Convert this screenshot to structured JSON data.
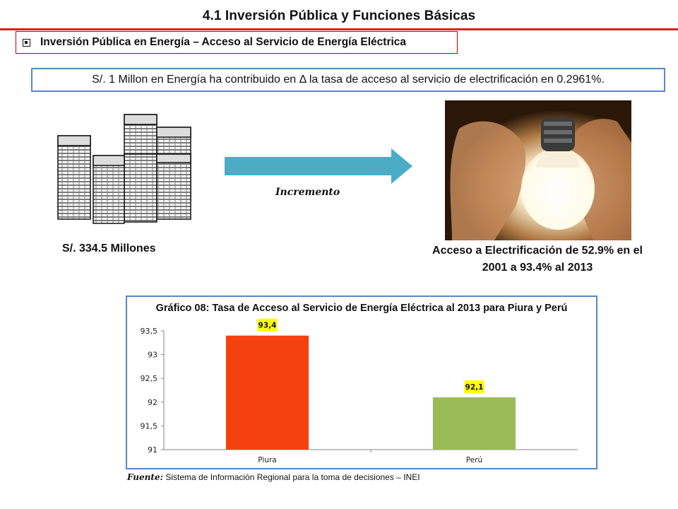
{
  "header": {
    "title": "4.1 Inversión Pública y Funciones Básicas",
    "subtitle": "Inversión Pública en Energía – Acceso al Servicio de Energía Eléctrica"
  },
  "statement": "S/. 1 Millon en Energía ha contribuido en Δ la tasa de acceso al servicio de electrificación en 0.2961%.",
  "left_panel": {
    "label": "S/. 334.5 Millones"
  },
  "arrow": {
    "label": "Incremento",
    "color": "#4bacc6"
  },
  "right_panel": {
    "label_line1": "Acceso a Electrificación de 52.9% en el",
    "label_line2": "2001 a 93.4% al 2013"
  },
  "source": {
    "prefix": "Fuente:",
    "text": " Sistema de Información Regional para la toma de decisiones – INEI"
  },
  "chart_data": {
    "type": "bar",
    "title": "Gráfico 08: Tasa de Acceso al Servicio de Energía Eléctrica al 2013 para Piura y Perú",
    "categories": [
      "Piura",
      "Perú"
    ],
    "values": [
      93.4,
      92.1
    ],
    "data_labels": [
      "93,4",
      "92,1"
    ],
    "colors": [
      "#f5410f",
      "#9bbb59"
    ],
    "ylim": [
      91,
      93.5
    ],
    "yticks": [
      91,
      91.5,
      92,
      92.5,
      93,
      93.5
    ],
    "ytick_labels": [
      "91",
      "91,5",
      "92",
      "92,5",
      "93",
      "93,5"
    ],
    "xlabel": "",
    "ylabel": "",
    "grid": false,
    "label_box_color": "#ffff00"
  }
}
